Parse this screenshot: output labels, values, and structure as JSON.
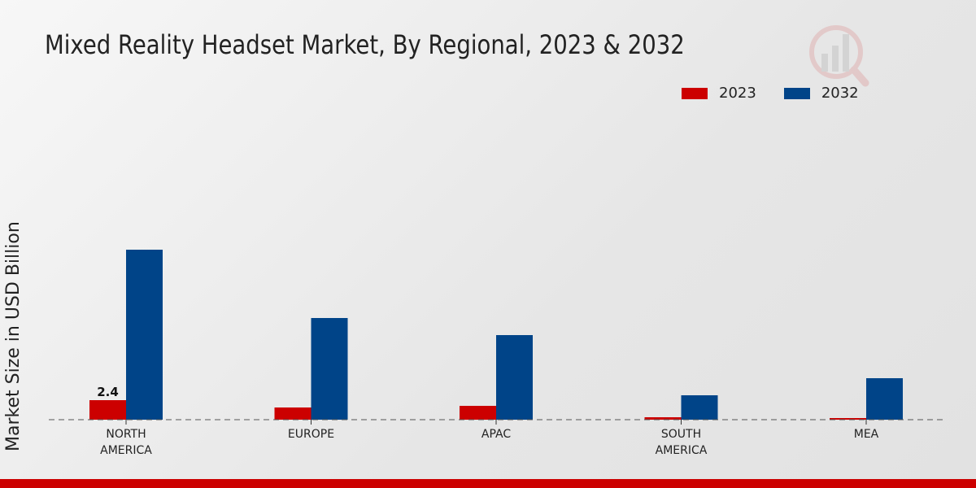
{
  "chart_data": {
    "type": "bar",
    "title": "Mixed Reality Headset Market, By Regional, 2023 & 2032",
    "xlabel": "",
    "ylabel": "Market Size in USD Billion",
    "categories": [
      "NORTH AMERICA",
      "EUROPE",
      "APAC",
      "SOUTH AMERICA",
      "MEA"
    ],
    "category_lines": [
      [
        "NORTH",
        "AMERICA"
      ],
      [
        "EUROPE"
      ],
      [
        "APAC"
      ],
      [
        "SOUTH",
        "AMERICA"
      ],
      [
        "MEA"
      ]
    ],
    "series": [
      {
        "name": "2023",
        "color": "#cc0000",
        "values": [
          2.4,
          1.5,
          1.7,
          0.3,
          0.2
        ]
      },
      {
        "name": "2032",
        "color": "#004488",
        "values": [
          20.9,
          12.5,
          10.4,
          3.0,
          5.1
        ]
      }
    ],
    "data_labels": [
      {
        "series": 0,
        "index": 0,
        "text": "2.4"
      }
    ],
    "ylim": [
      0,
      24
    ],
    "grid": false,
    "legend_position": "top-right"
  }
}
